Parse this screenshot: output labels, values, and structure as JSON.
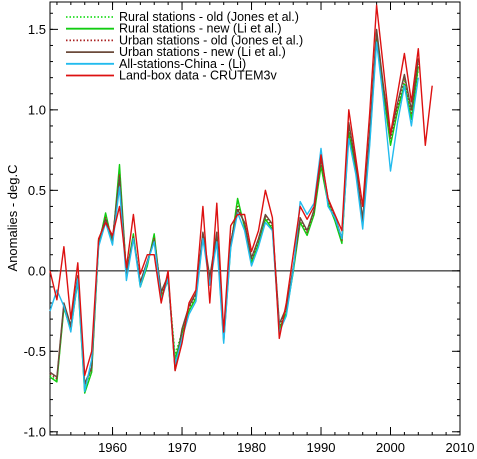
{
  "chart_data": {
    "type": "line",
    "ylabel": "Anomalies - deg.C",
    "xlim": [
      1951,
      2010
    ],
    "ylim": [
      -1.02,
      1.67
    ],
    "x_ticks": [
      1960,
      1970,
      1980,
      1990,
      2000,
      2010
    ],
    "y_ticks": [
      -1.0,
      -0.5,
      0.0,
      0.5,
      1.0,
      1.5
    ],
    "y_tick_labels": [
      "-1.0",
      "-0.5",
      "0.0",
      "0.5",
      "1.0",
      "1.5"
    ],
    "zero_line": true,
    "grid": false,
    "legend_position": "top-left",
    "series": [
      {
        "name": "Rural stations - old (Jones et al.)",
        "color": "#22dd22",
        "dash": "dotted",
        "x": [
          1951,
          1952,
          1953,
          1954,
          1955,
          1956,
          1957,
          1958,
          1959,
          1960,
          1961,
          1962,
          1963,
          1964,
          1965,
          1966,
          1967,
          1968,
          1969,
          1970,
          1971,
          1972,
          1973,
          1974,
          1975,
          1976,
          1977,
          1978,
          1979,
          1980,
          1981,
          1982,
          1983,
          1984,
          1985,
          1986,
          1987,
          1988,
          1989,
          1990,
          1991,
          1992,
          1993,
          1994,
          1995,
          1996,
          1997,
          1998,
          1999,
          2000,
          2001,
          2002,
          2003,
          2004
        ],
        "y": [
          -0.65,
          -0.68,
          -0.22,
          -0.36,
          -0.05,
          -0.72,
          -0.62,
          0.17,
          0.35,
          0.18,
          0.62,
          -0.03,
          0.22,
          -0.09,
          0.04,
          0.22,
          -0.15,
          -0.05,
          -0.52,
          -0.38,
          -0.24,
          -0.16,
          0.22,
          -0.06,
          0.22,
          -0.42,
          0.16,
          0.42,
          0.28,
          0.06,
          0.18,
          0.33,
          0.27,
          -0.35,
          -0.25,
          0.0,
          0.31,
          0.23,
          0.36,
          0.66,
          0.43,
          0.32,
          0.18,
          0.88,
          0.64,
          0.3,
          0.82,
          1.45,
          1.12,
          0.8,
          1.0,
          1.18,
          0.96,
          1.25
        ]
      },
      {
        "name": "Rural stations - new (Li et al.)",
        "color": "#11cc11",
        "dash": "solid",
        "x": [
          1951,
          1952,
          1953,
          1954,
          1955,
          1956,
          1957,
          1958,
          1959,
          1960,
          1961,
          1962,
          1963,
          1964,
          1965,
          1966,
          1967,
          1968,
          1969,
          1970,
          1971,
          1972,
          1973,
          1974,
          1975,
          1976,
          1977,
          1978,
          1979,
          1980,
          1981,
          1982,
          1983,
          1984,
          1985,
          1986,
          1987,
          1988,
          1989,
          1990,
          1991,
          1992,
          1993,
          1994,
          1995,
          1996,
          1997,
          1998,
          1999,
          2000,
          2001,
          2002,
          2003,
          2004
        ],
        "y": [
          -0.66,
          -0.69,
          -0.23,
          -0.37,
          -0.06,
          -0.76,
          -0.63,
          0.16,
          0.36,
          0.17,
          0.66,
          -0.02,
          0.23,
          -0.1,
          0.03,
          0.23,
          -0.16,
          -0.06,
          -0.55,
          -0.39,
          -0.25,
          -0.17,
          0.21,
          -0.07,
          0.21,
          -0.44,
          0.15,
          0.45,
          0.27,
          0.05,
          0.17,
          0.32,
          0.26,
          -0.36,
          -0.26,
          -0.01,
          0.3,
          0.22,
          0.35,
          0.65,
          0.42,
          0.31,
          0.17,
          0.86,
          0.63,
          0.29,
          0.8,
          1.44,
          1.1,
          0.78,
          0.99,
          1.16,
          0.94,
          1.27
        ]
      },
      {
        "name": "Urban stations - old (Jones et al.)",
        "color": "#aa2222",
        "dash": "dotted",
        "x": [
          1951,
          1952,
          1953,
          1954,
          1955,
          1956,
          1957,
          1958,
          1959,
          1960,
          1961,
          1962,
          1963,
          1964,
          1965,
          1966,
          1967,
          1968,
          1969,
          1970,
          1971,
          1972,
          1973,
          1974,
          1975,
          1976,
          1977,
          1978,
          1979,
          1980,
          1981,
          1982,
          1983,
          1984,
          1985,
          1986,
          1987,
          1988,
          1989,
          1990,
          1991,
          1992,
          1993,
          1994,
          1995,
          1996,
          1997,
          1998,
          1999,
          2000,
          2001,
          2002,
          2003,
          2004
        ],
        "y": [
          -0.64,
          -0.67,
          -0.21,
          -0.35,
          -0.04,
          -0.71,
          -0.61,
          0.18,
          0.33,
          0.19,
          0.6,
          -0.02,
          0.21,
          -0.08,
          0.05,
          0.2,
          -0.14,
          -0.04,
          -0.6,
          -0.37,
          -0.23,
          -0.15,
          0.23,
          -0.05,
          0.23,
          -0.41,
          0.17,
          0.4,
          0.29,
          0.07,
          0.19,
          0.34,
          0.28,
          -0.34,
          -0.24,
          0.01,
          0.32,
          0.24,
          0.37,
          0.68,
          0.44,
          0.33,
          0.19,
          0.9,
          0.65,
          0.31,
          0.84,
          1.48,
          1.13,
          0.82,
          1.02,
          1.2,
          0.98,
          1.3
        ]
      },
      {
        "name": "Urban stations - new (Li et al.)",
        "color": "#6b4a3a",
        "dash": "solid",
        "x": [
          1951,
          1952,
          1953,
          1954,
          1955,
          1956,
          1957,
          1958,
          1959,
          1960,
          1961,
          1962,
          1963,
          1964,
          1965,
          1966,
          1967,
          1968,
          1969,
          1970,
          1971,
          1972,
          1973,
          1974,
          1975,
          1976,
          1977,
          1978,
          1979,
          1980,
          1981,
          1982,
          1983,
          1984,
          1985,
          1986,
          1987,
          1988,
          1989,
          1990,
          1991,
          1992,
          1993,
          1994,
          1995,
          1996,
          1997,
          1998,
          1999,
          2000,
          2001,
          2002,
          2003,
          2004
        ],
        "y": [
          -0.63,
          -0.66,
          -0.2,
          -0.34,
          -0.03,
          -0.7,
          -0.6,
          0.19,
          0.32,
          0.2,
          0.58,
          -0.01,
          0.2,
          -0.07,
          0.06,
          0.19,
          -0.13,
          -0.03,
          -0.62,
          -0.36,
          -0.22,
          -0.14,
          0.24,
          -0.04,
          0.24,
          -0.4,
          0.18,
          0.38,
          0.3,
          0.08,
          0.2,
          0.35,
          0.29,
          -0.33,
          -0.23,
          0.02,
          0.33,
          0.25,
          0.38,
          0.7,
          0.45,
          0.34,
          0.2,
          0.92,
          0.66,
          0.32,
          0.86,
          1.5,
          1.14,
          0.84,
          1.04,
          1.22,
          1.0,
          1.32
        ]
      },
      {
        "name": "All-stations-China - (Li)",
        "color": "#22bbee",
        "dash": "solid",
        "x": [
          1951,
          1952,
          1953,
          1954,
          1955,
          1956,
          1957,
          1958,
          1959,
          1960,
          1961,
          1962,
          1963,
          1964,
          1965,
          1966,
          1967,
          1968,
          1969,
          1970,
          1971,
          1972,
          1973,
          1974,
          1975,
          1976,
          1977,
          1978,
          1979,
          1980,
          1981,
          1982,
          1983,
          1984,
          1985,
          1986,
          1987,
          1988,
          1989,
          1990,
          1991,
          1992,
          1993,
          1994,
          1995,
          1996,
          1997,
          1998,
          1999,
          2000,
          2001,
          2002,
          2003,
          2004
        ],
        "y": [
          -0.25,
          -0.12,
          -0.22,
          -0.38,
          -0.05,
          -0.75,
          -0.55,
          0.15,
          0.3,
          0.16,
          0.52,
          -0.06,
          0.2,
          -0.1,
          0.05,
          0.18,
          -0.18,
          -0.05,
          -0.58,
          -0.42,
          -0.27,
          -0.19,
          0.2,
          -0.09,
          0.18,
          -0.45,
          0.14,
          0.36,
          0.25,
          0.03,
          0.15,
          0.3,
          0.25,
          -0.38,
          -0.28,
          0.0,
          0.43,
          0.35,
          0.42,
          0.76,
          0.4,
          0.33,
          0.2,
          0.82,
          0.6,
          0.26,
          0.78,
          1.42,
          1.05,
          0.62,
          0.92,
          1.15,
          0.9,
          1.2
        ]
      },
      {
        "name": "Land-box data - CRUTEM3v",
        "color": "#dd1111",
        "dash": "solid",
        "x": [
          1951,
          1952,
          1953,
          1954,
          1955,
          1956,
          1957,
          1958,
          1959,
          1960,
          1961,
          1962,
          1963,
          1964,
          1965,
          1966,
          1967,
          1968,
          1969,
          1970,
          1971,
          1972,
          1973,
          1974,
          1975,
          1976,
          1977,
          1978,
          1979,
          1980,
          1981,
          1982,
          1983,
          1984,
          1985,
          1986,
          1987,
          1988,
          1989,
          1990,
          1991,
          1992,
          1993,
          1994,
          1995,
          1996,
          1997,
          1998,
          1999,
          2000,
          2001,
          2002,
          2003,
          2004,
          2005,
          2006
        ],
        "y": [
          0.0,
          -0.18,
          0.15,
          -0.3,
          0.05,
          -0.65,
          -0.5,
          0.2,
          0.3,
          0.22,
          0.4,
          0.02,
          0.35,
          -0.02,
          0.1,
          0.1,
          -0.2,
          0.0,
          -0.62,
          -0.45,
          -0.2,
          -0.12,
          0.4,
          -0.2,
          0.42,
          -0.38,
          0.28,
          0.35,
          0.35,
          0.12,
          0.25,
          0.5,
          0.33,
          -0.42,
          -0.2,
          0.1,
          0.4,
          0.32,
          0.4,
          0.72,
          0.45,
          0.35,
          0.25,
          1.0,
          0.7,
          0.4,
          0.98,
          1.65,
          1.25,
          0.85,
          1.1,
          1.35,
          1.05,
          1.38,
          0.78,
          1.15
        ]
      }
    ]
  }
}
